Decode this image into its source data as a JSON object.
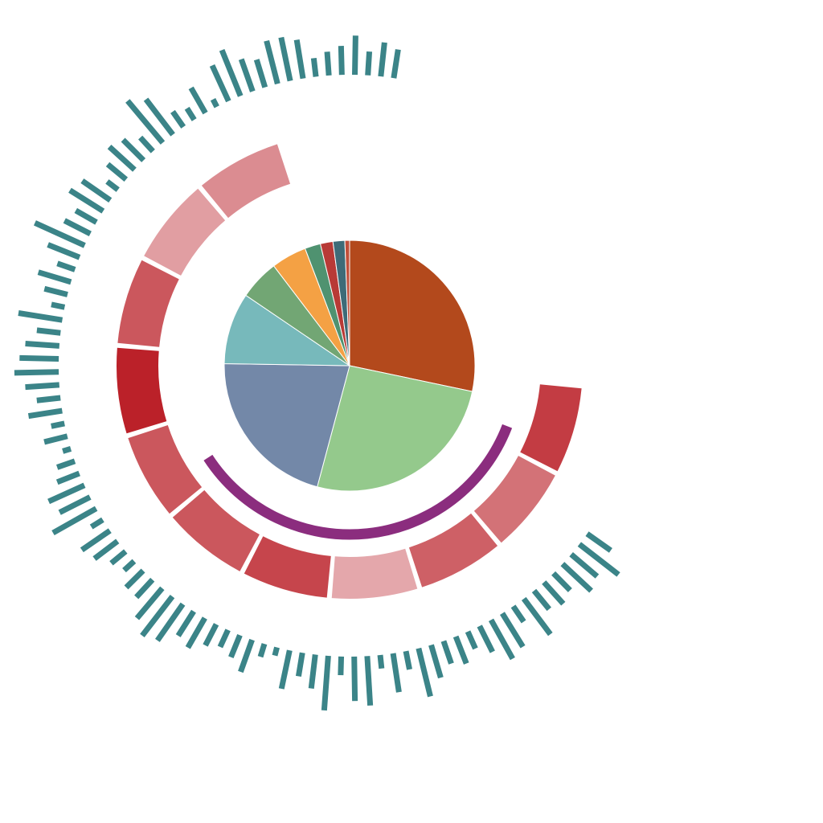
{
  "chart_data": [
    {
      "type": "pie",
      "ring": "inner-pie",
      "slices": [
        {
          "value": 27.9,
          "color": "#b3491c"
        },
        {
          "value": 25.5,
          "color": "#94c98c"
        },
        {
          "value": 20.8,
          "color": "#7388a8"
        },
        {
          "value": 9.1,
          "color": "#77b9bb"
        },
        {
          "value": 5.1,
          "color": "#72a674"
        },
        {
          "value": 4.5,
          "color": "#f4a144"
        },
        {
          "value": 2.0,
          "color": "#4f9270"
        },
        {
          "value": 1.6,
          "color": "#b83a36"
        },
        {
          "value": 1.5,
          "color": "#3e6b78"
        },
        {
          "value": 0.6,
          "color": "#c24f3a"
        }
      ]
    },
    {
      "type": "arc",
      "ring": "purple-arc",
      "start_deg": 111,
      "end_deg": 237,
      "color": "#8b2d7e"
    },
    {
      "type": "heatmap",
      "ring": "red-segment-ring",
      "start_deg": 95,
      "segment_span_deg": 22.5,
      "gap_deg": 1.2,
      "values": [
        0.85,
        0.55,
        0.65,
        0.25,
        0.8,
        0.7,
        0.7,
        1.0,
        0.7,
        0.3,
        0.4
      ],
      "color_low": "#f1d4d6",
      "color_high": "#bb2129"
    },
    {
      "type": "bar",
      "ring": "outer-radial-bars",
      "start_deg": 124,
      "end_deg": 370,
      "color": "#3b8488",
      "values": [
        5,
        9,
        6,
        7,
        4,
        5,
        4,
        8,
        3,
        7,
        8,
        5,
        3,
        5,
        4,
        6,
        9,
        3,
        7,
        2,
        9,
        8,
        3,
        10,
        6,
        4,
        7,
        1,
        2,
        6,
        4,
        3,
        4,
        6,
        5,
        8,
        9,
        7,
        4,
        4,
        2,
        3,
        5,
        6,
        2,
        9,
        6,
        7,
        4,
        3,
        1,
        4,
        2,
        6,
        4,
        6,
        8,
        7,
        6,
        4,
        8,
        2,
        4,
        6,
        3,
        6,
        10,
        5,
        4,
        7,
        6,
        2,
        4,
        6,
        5,
        3,
        10,
        8,
        3,
        2,
        5,
        1,
        7,
        9,
        6,
        5,
        8,
        8,
        7,
        3,
        4,
        5,
        7,
        4,
        6,
        5
      ]
    }
  ]
}
